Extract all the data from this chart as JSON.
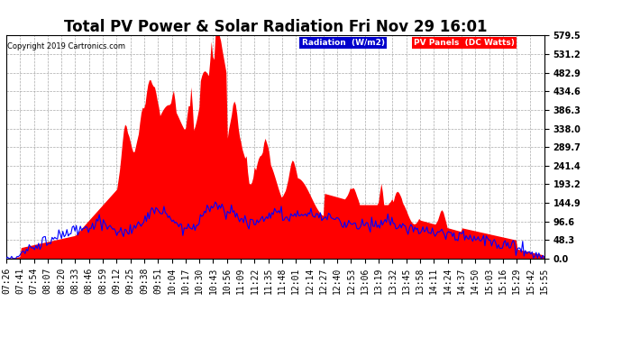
{
  "title": "Total PV Power & Solar Radiation Fri Nov 29 16:01",
  "copyright": "Copyright 2019 Cartronics.com",
  "legend_radiation": "Radiation  (W/m2)",
  "legend_pv": "PV Panels  (DC Watts)",
  "ymax": 579.5,
  "yticks": [
    0.0,
    48.3,
    96.6,
    144.9,
    193.2,
    241.4,
    289.7,
    338.0,
    386.3,
    434.6,
    482.9,
    531.2,
    579.5
  ],
  "bg_color": "#ffffff",
  "plot_bg_color": "#ffffff",
  "grid_color": "#aaaaaa",
  "pv_fill_color": "#ff0000",
  "radiation_line_color": "#0000ff",
  "title_fontsize": 12,
  "tick_fontsize": 7,
  "x_tick_labels": [
    "07:26",
    "07:41",
    "07:54",
    "08:07",
    "08:20",
    "08:33",
    "08:46",
    "08:59",
    "09:12",
    "09:25",
    "09:38",
    "09:51",
    "10:04",
    "10:17",
    "10:30",
    "10:43",
    "10:56",
    "11:09",
    "11:22",
    "11:35",
    "11:48",
    "12:01",
    "12:14",
    "12:27",
    "12:40",
    "12:53",
    "13:06",
    "13:19",
    "13:32",
    "13:45",
    "13:58",
    "14:11",
    "14:24",
    "14:37",
    "14:50",
    "15:03",
    "15:16",
    "15:29",
    "15:42",
    "15:55"
  ]
}
